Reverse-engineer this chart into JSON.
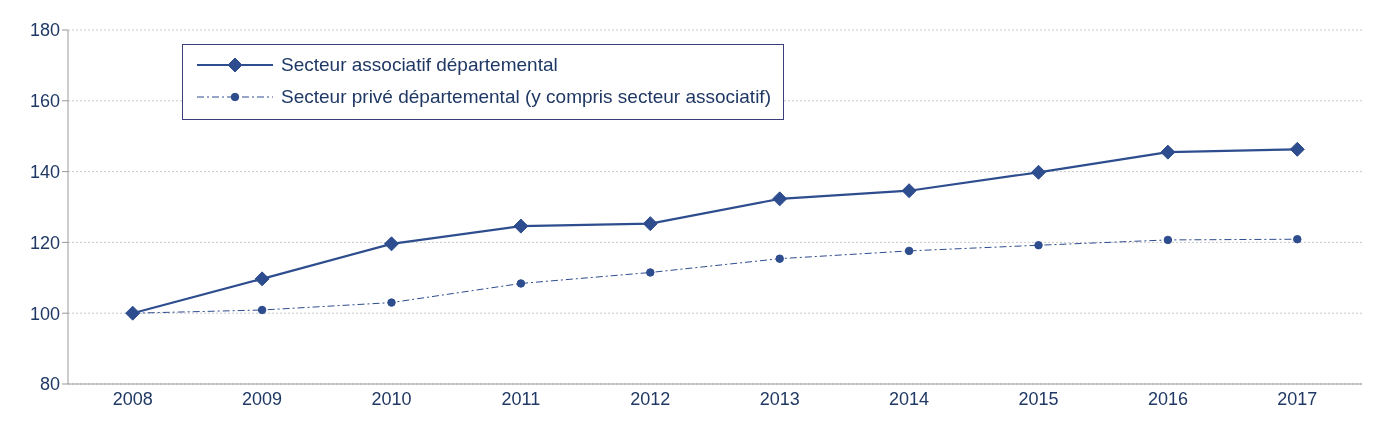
{
  "chart_data": {
    "type": "line",
    "categories": [
      "2008",
      "2009",
      "2010",
      "2011",
      "2012",
      "2013",
      "2014",
      "2015",
      "2016",
      "2017"
    ],
    "series": [
      {
        "name": "Secteur associatif départemental",
        "color": "#2e4d8e",
        "marker": "diamond",
        "line_style": "solid",
        "values": [
          100,
          109.7,
          119.6,
          124.6,
          125.3,
          132.3,
          134.6,
          139.8,
          145.5,
          146.3
        ]
      },
      {
        "name": "Secteur privé départemental (y compris secteur associatif)",
        "color": "#2e4d8e",
        "marker": "circle",
        "line_style": "dashed",
        "values": [
          100,
          100.9,
          103,
          108.4,
          111.5,
          115.4,
          117.6,
          119.2,
          120.7,
          120.9
        ]
      }
    ],
    "ylim": [
      80,
      180
    ],
    "yticks": [
      80,
      100,
      120,
      140,
      160,
      180
    ],
    "grid": "y",
    "legend": "top left"
  }
}
